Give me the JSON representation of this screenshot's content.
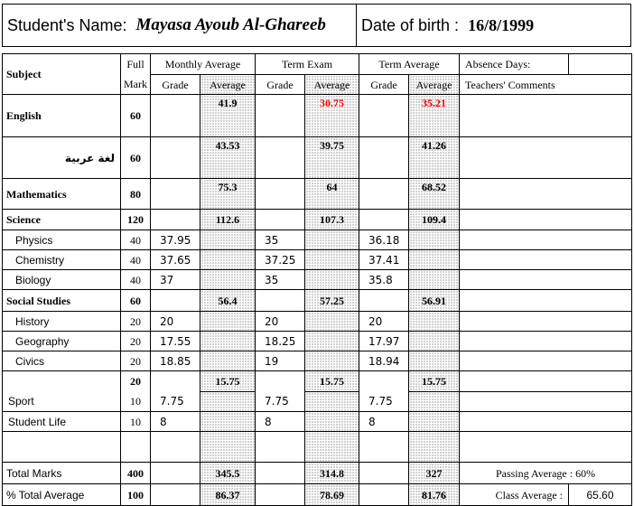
{
  "header": {
    "name_label": "Student's Name:",
    "name_value": "Mayasa Ayoub Al-Ghareeb",
    "dob_label": "Date of birth :",
    "dob_value": "16/8/1999"
  },
  "columns": {
    "subject": "Subject",
    "full_mark_1": "Full",
    "full_mark_2": "Mark",
    "monthly_average": "Monthly Average",
    "term_exam": "Term Exam",
    "term_average": "Term Average",
    "grade": "Grade",
    "average": "Average",
    "absence_days": "Absence Days:",
    "teachers_comments": "Teachers' Comments"
  },
  "rows": [
    {
      "subject": "English",
      "full": "60",
      "m_avg": "41.9",
      "e_avg": "30.75",
      "t_avg": "35.21"
    },
    {
      "subject": "لغة عربية",
      "full": "60",
      "m_avg": "43.53",
      "e_avg": "39.75",
      "t_avg": "41.26"
    },
    {
      "subject": "Mathematics",
      "full": "80",
      "m_avg": "75.3",
      "e_avg": "64",
      "t_avg": "68.52"
    },
    {
      "subject": "Science",
      "full": "120",
      "m_avg": "112.6",
      "e_avg": "107.3",
      "t_avg": "109.4"
    },
    {
      "subject": "Physics",
      "full": "40",
      "m_grade": "37.95",
      "e_grade": "35",
      "t_grade": "36.18"
    },
    {
      "subject": "Chemistry",
      "full": "40",
      "m_grade": "37.65",
      "e_grade": "37.25",
      "t_grade": "37.41"
    },
    {
      "subject": "Biology",
      "full": "40",
      "m_grade": "37",
      "e_grade": "35",
      "t_grade": "35.8"
    },
    {
      "subject": "Social Studies",
      "full": "60",
      "m_avg": "56.4",
      "e_avg": "57.25",
      "t_avg": "56.91"
    },
    {
      "subject": "History",
      "full": "20",
      "m_grade": "20",
      "e_grade": "20",
      "t_grade": "20"
    },
    {
      "subject": "Geography",
      "full": "20",
      "m_grade": "17.55",
      "e_grade": "18.25",
      "t_grade": "17.97"
    },
    {
      "subject": "Civics",
      "full": "20",
      "m_grade": "18.85",
      "e_grade": "19",
      "t_grade": "18.94"
    },
    {
      "subject": "",
      "full": "20",
      "m_avg": "15.75",
      "e_avg": "15.75",
      "t_avg": "15.75"
    },
    {
      "subject": "Sport",
      "full": "10",
      "m_grade": "7.75",
      "e_grade": "7.75",
      "t_grade": "7.75"
    },
    {
      "subject": "Student Life",
      "full": "10",
      "m_grade": "8",
      "e_grade": "8",
      "t_grade": "8"
    }
  ],
  "totals": {
    "label": "Total Marks",
    "full": "400",
    "m_avg": "345.5",
    "e_avg": "314.8",
    "t_avg": "327",
    "passing": "Passing Average : 60%"
  },
  "percent": {
    "label": "% Total Average",
    "full": "100",
    "m_avg": "86.37",
    "e_avg": "78.69",
    "t_avg": "81.76",
    "class_label": "Class Average :",
    "class_value": "65.60"
  },
  "colors": {
    "failing": "#ff0000",
    "border": "#000000"
  }
}
